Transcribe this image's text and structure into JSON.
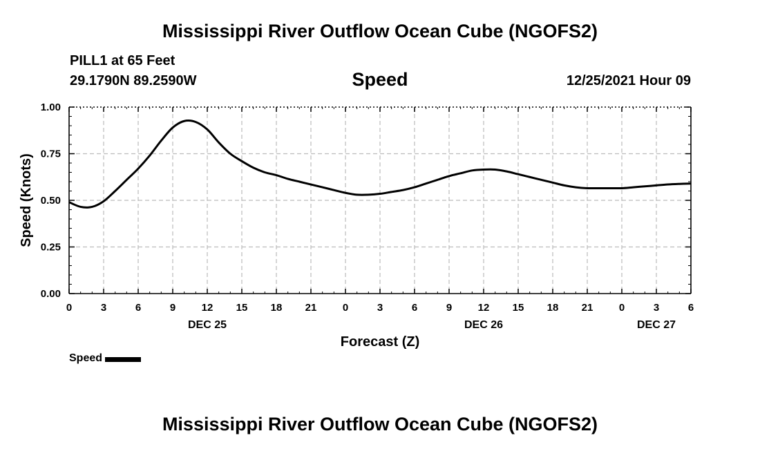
{
  "header": {
    "title": "Mississippi River Outflow Ocean Cube (NGOFS2)",
    "station": "PILL1 at 65 Feet",
    "coordinates": "29.1790N  89.2590W",
    "variable": "Speed",
    "datetime": "12/25/2021 Hour 09"
  },
  "footer": {
    "title": "Mississippi River Outflow Ocean Cube (NGOFS2)"
  },
  "chart_data": {
    "type": "line",
    "xlabel": "Forecast (Z)",
    "ylabel": "Speed (Knots)",
    "xlim": [
      0,
      54
    ],
    "ylim": [
      0,
      1
    ],
    "y_ticks": [
      "0.00",
      "0.25",
      "0.50",
      "0.75",
      "1.00"
    ],
    "x_ticks": [
      "0",
      "3",
      "6",
      "9",
      "12",
      "15",
      "18",
      "21",
      "0",
      "3",
      "6",
      "9",
      "12",
      "15",
      "18",
      "21",
      "0",
      "3",
      "6"
    ],
    "date_labels": [
      {
        "label": "DEC 25",
        "hour": 12
      },
      {
        "label": "DEC 26",
        "hour": 36
      },
      {
        "label": "DEC 27",
        "hour": 51
      }
    ],
    "grid": true,
    "legend": "bottom-left",
    "series": [
      {
        "name": "Speed",
        "color": "#000000",
        "x": [
          0,
          1,
          2,
          3,
          4,
          5,
          6,
          7,
          8,
          9,
          10,
          11,
          12,
          13,
          14,
          15,
          16,
          17,
          18,
          19,
          20,
          21,
          22,
          23,
          24,
          25,
          26,
          27,
          28,
          29,
          30,
          31,
          32,
          33,
          34,
          35,
          36,
          37,
          38,
          39,
          40,
          41,
          42,
          43,
          44,
          45,
          46,
          47,
          48,
          49,
          50,
          51,
          52,
          53,
          54
        ],
        "values": [
          0.49,
          0.465,
          0.465,
          0.495,
          0.55,
          0.61,
          0.67,
          0.74,
          0.82,
          0.89,
          0.925,
          0.92,
          0.88,
          0.81,
          0.75,
          0.71,
          0.675,
          0.65,
          0.635,
          0.615,
          0.6,
          0.585,
          0.57,
          0.555,
          0.54,
          0.53,
          0.53,
          0.535,
          0.545,
          0.555,
          0.57,
          0.59,
          0.61,
          0.63,
          0.645,
          0.66,
          0.665,
          0.665,
          0.655,
          0.64,
          0.625,
          0.61,
          0.595,
          0.58,
          0.57,
          0.565,
          0.565,
          0.565,
          0.565,
          0.57,
          0.575,
          0.58,
          0.585,
          0.588,
          0.59
        ]
      }
    ]
  }
}
